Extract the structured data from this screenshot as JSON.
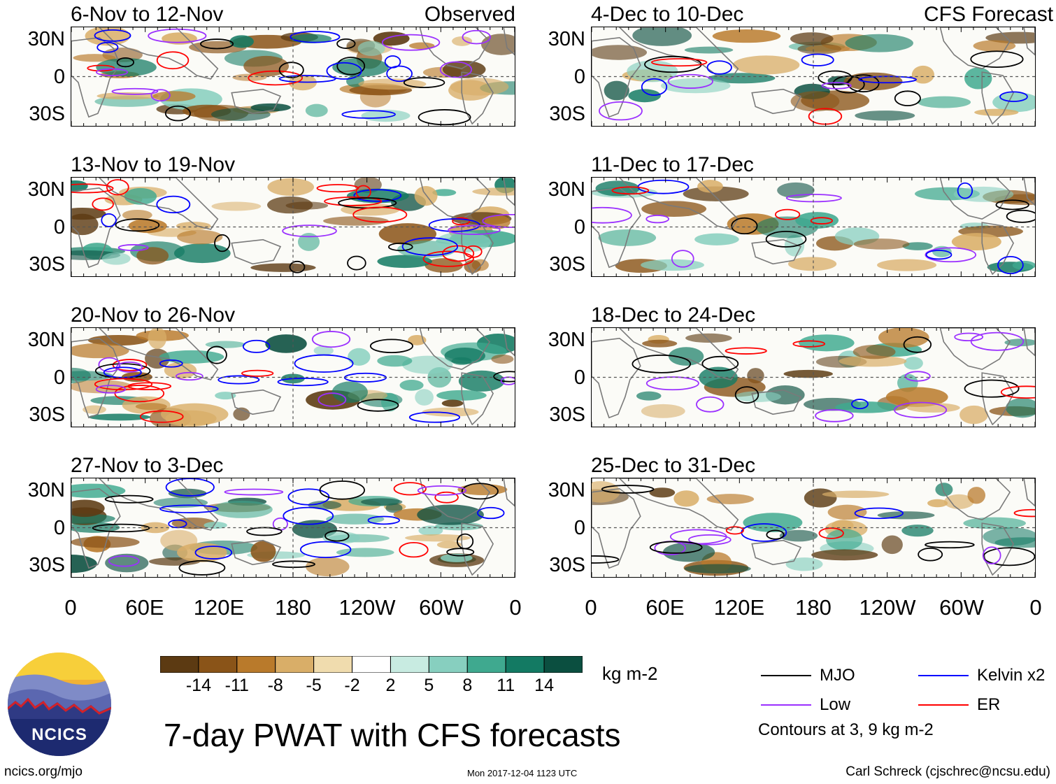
{
  "chart_data": {
    "type": "heatmap",
    "title": "7-day PWAT with CFS forecasts",
    "variable": "7-day precipitable water (PWAT) anomaly",
    "units": "kg m-2",
    "colorbar": {
      "ticks": [
        "-14",
        "-11",
        "-8",
        "-5",
        "-2",
        "2",
        "5",
        "8",
        "11",
        "14"
      ],
      "colors": [
        "#5c3a12",
        "#8a5418",
        "#b97a2b",
        "#d9ae68",
        "#f0dcae",
        "#f8f3e4",
        "#ffffff",
        "#c8ebe1",
        "#87cfbf",
        "#3fa98f",
        "#137a63",
        "#0b4f40"
      ]
    },
    "contour_legend": {
      "items": [
        {
          "label": "MJO",
          "color": "#000000"
        },
        {
          "label": "Kelvin x2",
          "color": "#0000ff"
        },
        {
          "label": "Low",
          "color": "#9b30ff"
        },
        {
          "label": "ER",
          "color": "#ff0000"
        }
      ],
      "note": "Contours at 3, 9 kg m-2"
    },
    "axes": {
      "lat_range": [
        -40,
        40
      ],
      "lon_range": [
        0,
        360
      ],
      "lat_ticks": [
        "30N",
        "0",
        "30S"
      ],
      "lon_ticks": [
        "0",
        "60E",
        "120E",
        "180",
        "120W",
        "60W",
        "0"
      ]
    },
    "columns": [
      {
        "header": "Observed",
        "panels": [
          "6-Nov to 12-Nov",
          "13-Nov to 19-Nov",
          "20-Nov to 26-Nov",
          "27-Nov to 3-Dec"
        ]
      },
      {
        "header": "CFS Forecast",
        "panels": [
          "4-Dec to 10-Dec",
          "11-Dec to 17-Dec",
          "18-Dec to 24-Dec",
          "25-Dec to 31-Dec"
        ]
      }
    ]
  },
  "footer": {
    "website": "ncics.org/mjo",
    "timestamp": "Mon 2017-12-04 1123 UTC",
    "author": "Carl Schreck (cjschrec@ncsu.edu)",
    "logo_text": "NCICS"
  }
}
